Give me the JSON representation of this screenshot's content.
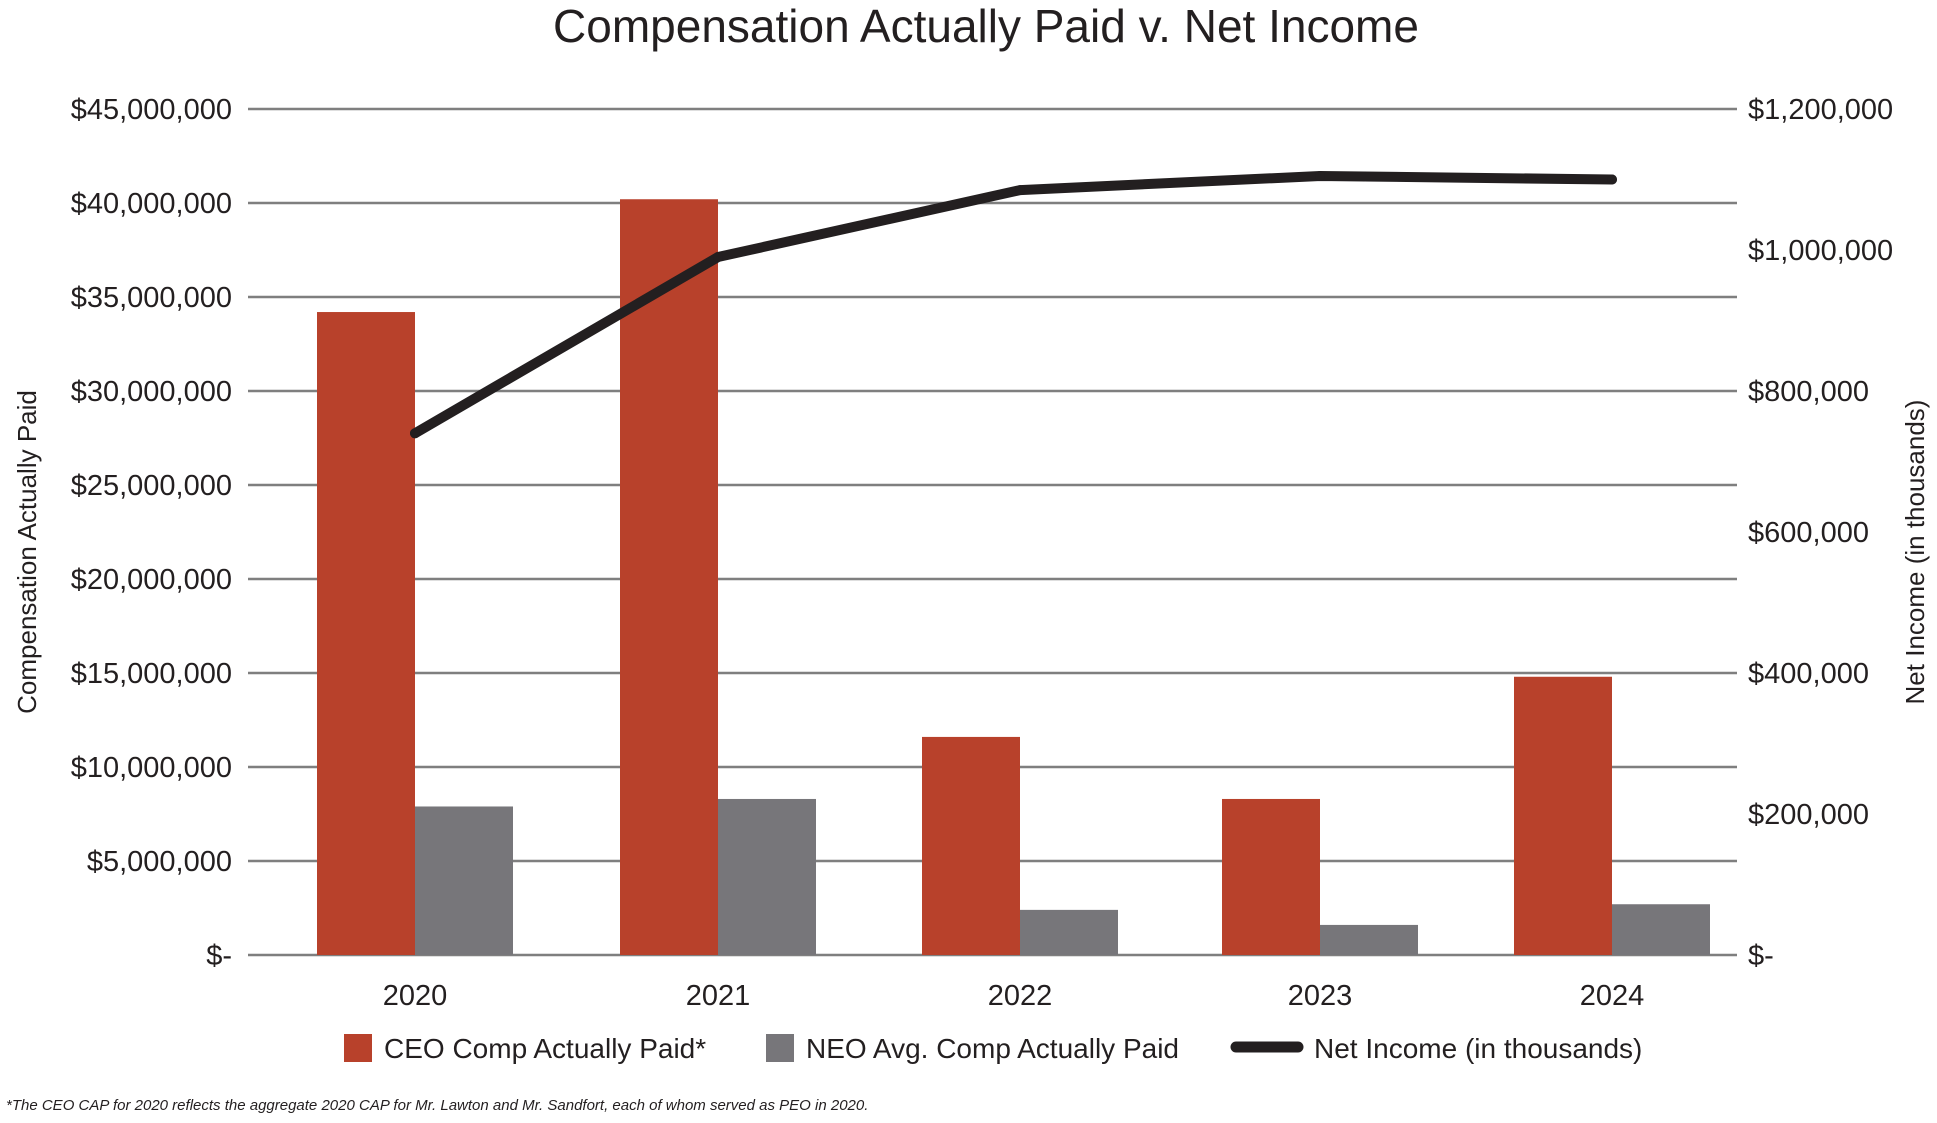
{
  "colors": {
    "ceo": "#b8412b",
    "neo": "#77767a",
    "net_income": "#231f20",
    "grid": "#7f7f7f"
  },
  "chart_data": {
    "type": "bar",
    "title": "Compensation Actually Paid v. Net Income",
    "xlabel": "",
    "ylabel": "Compensation Actually Paid",
    "y2label": "Net Income (in thousands)",
    "categories": [
      "2020",
      "2021",
      "2022",
      "2023",
      "2024"
    ],
    "ylim": [
      0,
      45000000
    ],
    "y2lim": [
      0,
      1200000
    ],
    "y_ticks": [
      0,
      5000000,
      10000000,
      15000000,
      20000000,
      25000000,
      30000000,
      35000000,
      40000000,
      45000000
    ],
    "y_tick_labels": [
      "$-",
      "$5,000,000",
      "$10,000,000",
      "$15,000,000",
      "$20,000,000",
      "$25,000,000",
      "$30,000,000",
      "$35,000,000",
      "$40,000,000",
      "$45,000,000"
    ],
    "y2_ticks": [
      0,
      200000,
      400000,
      600000,
      800000,
      1000000,
      1200000
    ],
    "y2_tick_labels": [
      "$-",
      "$200,000",
      "$400,000",
      "$600,000",
      "$800,000",
      "$1,000,000",
      "$1,200,000"
    ],
    "series": [
      {
        "name": "CEO Comp Actually Paid*",
        "type": "bar",
        "axis": "left",
        "values": [
          34200000,
          40200000,
          11600000,
          8300000,
          14800000
        ]
      },
      {
        "name": "NEO Avg. Comp Actually Paid",
        "type": "bar",
        "axis": "left",
        "values": [
          7900000,
          8300000,
          2400000,
          1600000,
          2700000
        ]
      },
      {
        "name": "Net Income (in thousands)",
        "type": "line",
        "axis": "right",
        "values": [
          740000,
          990000,
          1085000,
          1105000,
          1100000
        ]
      }
    ],
    "legend_position": "bottom",
    "grid": true,
    "footnote": "*The CEO CAP for 2020 reflects the aggregate 2020 CAP for Mr. Lawton and Mr. Sandfort, each of whom served as PEO in 2020."
  }
}
